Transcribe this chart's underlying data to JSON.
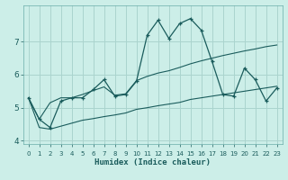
{
  "xlabel": "Humidex (Indice chaleur)",
  "bg_color": "#cceee8",
  "grid_color": "#aad4ce",
  "line_color": "#1a5c5c",
  "x_values": [
    0,
    1,
    2,
    3,
    4,
    5,
    6,
    7,
    8,
    9,
    10,
    11,
    12,
    13,
    14,
    15,
    16,
    17,
    18,
    19,
    20,
    21,
    22,
    23
  ],
  "main_y": [
    5.3,
    4.65,
    4.4,
    5.2,
    5.3,
    5.3,
    5.55,
    5.85,
    5.35,
    5.4,
    5.8,
    7.2,
    7.65,
    7.1,
    7.55,
    7.7,
    7.35,
    6.4,
    5.4,
    5.35,
    6.2,
    5.85,
    5.2,
    5.6
  ],
  "upper_y": [
    5.3,
    4.65,
    5.15,
    5.3,
    5.3,
    5.4,
    5.52,
    5.63,
    5.38,
    5.42,
    5.82,
    5.95,
    6.05,
    6.12,
    6.22,
    6.33,
    6.42,
    6.5,
    6.58,
    6.65,
    6.72,
    6.78,
    6.85,
    6.9
  ],
  "lower_y": [
    5.3,
    4.4,
    4.35,
    4.44,
    4.53,
    4.62,
    4.67,
    4.73,
    4.78,
    4.84,
    4.95,
    5.0,
    5.06,
    5.11,
    5.16,
    5.25,
    5.3,
    5.35,
    5.4,
    5.45,
    5.5,
    5.55,
    5.6,
    5.65
  ],
  "ylim": [
    3.9,
    8.1
  ],
  "yticks": [
    4,
    5,
    6,
    7
  ],
  "xlim": [
    -0.5,
    23.5
  ],
  "xlabel_fontsize": 6.5,
  "tick_fontsize_x": 5.0,
  "tick_fontsize_y": 6.5
}
